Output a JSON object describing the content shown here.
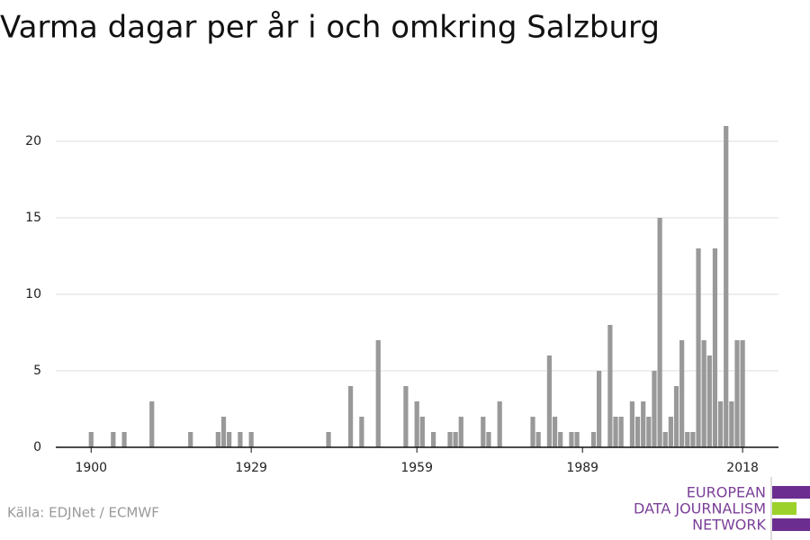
{
  "chart_data": {
    "type": "bar",
    "title": "Varma dagar per år i och omkring Salzburg",
    "source": "Källa: EDJNet / ECMWF",
    "logo": [
      "EUROPEAN",
      "DATA JOURNALISM",
      "NETWORK"
    ],
    "x": [
      1900,
      1904,
      1906,
      1911,
      1918,
      1923,
      1924,
      1925,
      1927,
      1929,
      1943,
      1947,
      1949,
      1952,
      1957,
      1959,
      1960,
      1962,
      1965,
      1966,
      1967,
      1971,
      1972,
      1974,
      1980,
      1981,
      1983,
      1984,
      1985,
      1987,
      1988,
      1991,
      1992,
      1994,
      1995,
      1996,
      1998,
      1999,
      2000,
      2001,
      2002,
      2003,
      2004,
      2005,
      2006,
      2007,
      2008,
      2009,
      2010,
      2011,
      2012,
      2013,
      2014,
      2015,
      2016,
      2017,
      2018
    ],
    "values": [
      1,
      1,
      1,
      3,
      1,
      1,
      2,
      1,
      1,
      1,
      1,
      4,
      2,
      7,
      4,
      3,
      2,
      1,
      1,
      1,
      2,
      2,
      1,
      3,
      2,
      1,
      6,
      2,
      1,
      1,
      1,
      1,
      5,
      8,
      2,
      2,
      3,
      2,
      3,
      2,
      5,
      15,
      1,
      2,
      4,
      7,
      1,
      1,
      13,
      7,
      6,
      13,
      3,
      21,
      3,
      7,
      7
    ],
    "color": "#999999",
    "xlim": [
      1893.6,
      2024.5
    ],
    "xticks": [
      1900,
      1929,
      1959,
      1989,
      2018
    ],
    "ylim": [
      0,
      22
    ],
    "yticks": [
      0,
      5,
      10,
      15,
      20
    ],
    "grid": true
  }
}
